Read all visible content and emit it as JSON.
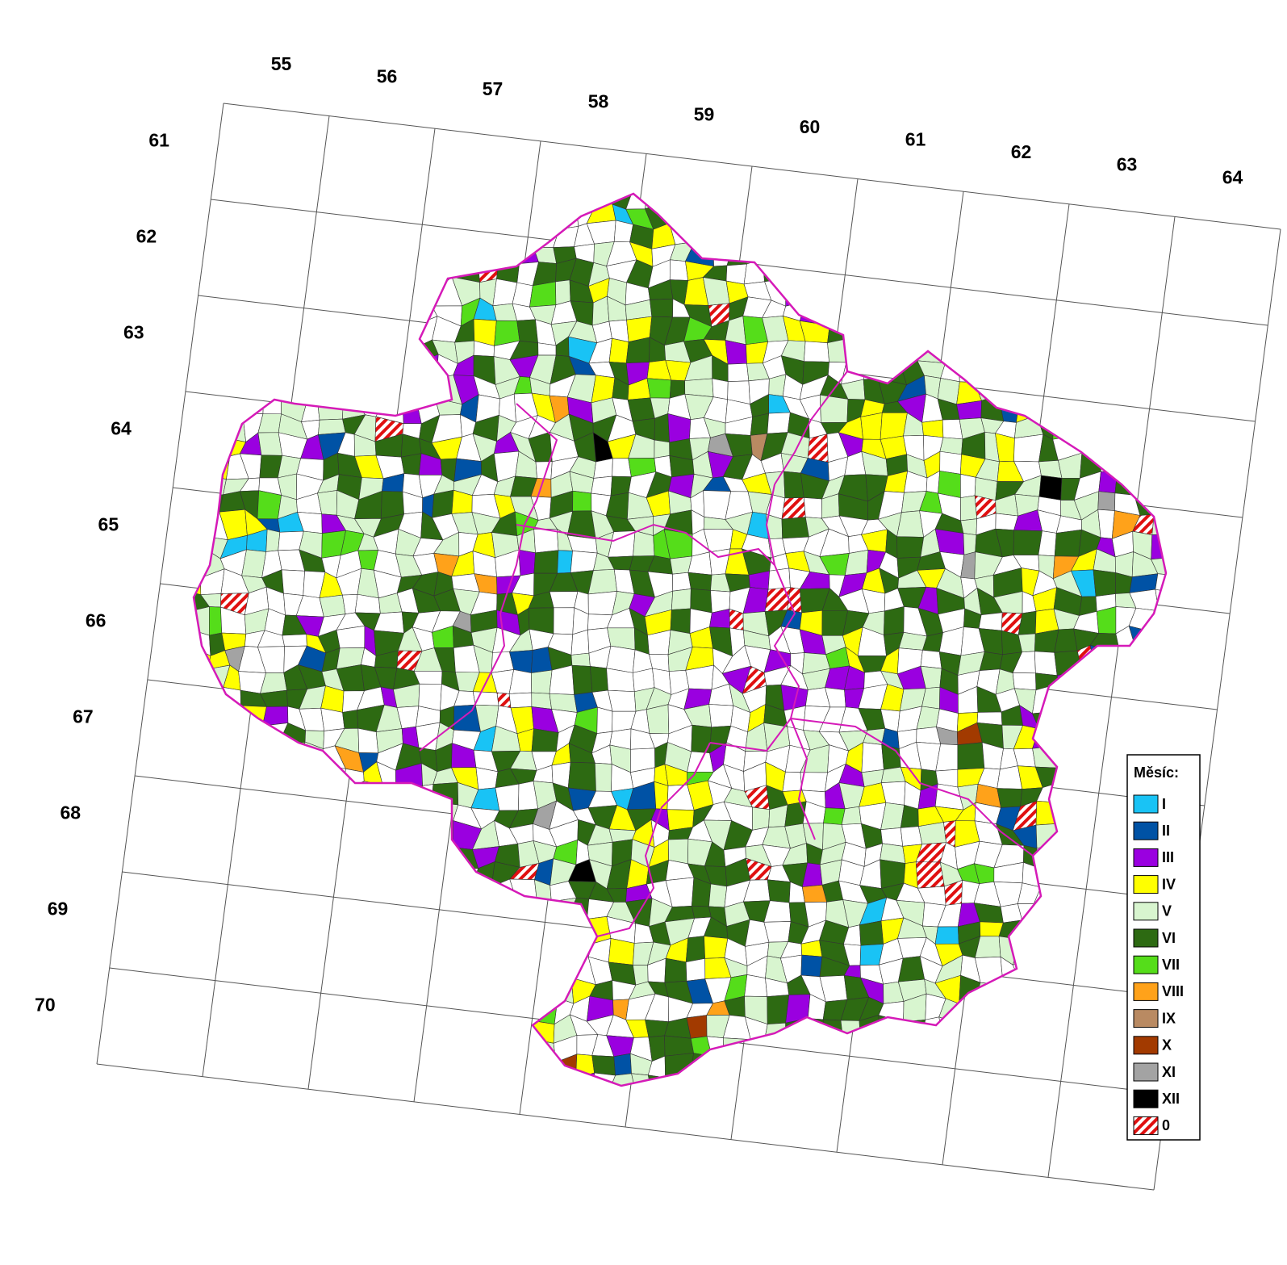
{
  "grid": {
    "columns": [
      "55",
      "56",
      "57",
      "58",
      "59",
      "60",
      "61",
      "62",
      "63",
      "64"
    ],
    "rows": [
      "61",
      "62",
      "63",
      "64",
      "65",
      "66",
      "67",
      "68",
      "69",
      "70"
    ]
  },
  "legend": {
    "title": "Měsíc:",
    "items": [
      {
        "label": "I",
        "color": "#19c3f5"
      },
      {
        "label": "II",
        "color": "#0052a5"
      },
      {
        "label": "III",
        "color": "#9a00e0"
      },
      {
        "label": "IV",
        "color": "#ffff00"
      },
      {
        "label": "V",
        "color": "#d8f5cf"
      },
      {
        "label": "VI",
        "color": "#2d6a12"
      },
      {
        "label": "VII",
        "color": "#55dd1a"
      },
      {
        "label": "VIII",
        "color": "#ffa21a"
      },
      {
        "label": "IX",
        "color": "#b98a62"
      },
      {
        "label": "X",
        "color": "#a23a00"
      },
      {
        "label": "XI",
        "color": "#a3a3a3"
      },
      {
        "label": "XII",
        "color": "#000000"
      },
      {
        "label": "0",
        "color": "#e01010",
        "hatch": true
      }
    ]
  }
}
